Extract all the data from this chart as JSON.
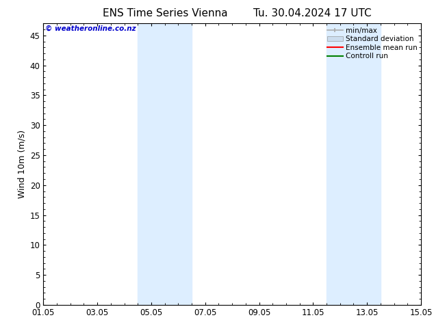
{
  "title_left": "ENS Time Series Vienna",
  "title_right": "Tu. 30.04.2024 17 UTC",
  "ylabel": "Wind 10m (m/s)",
  "ylim": [
    0,
    47
  ],
  "yticks": [
    0,
    5,
    10,
    15,
    20,
    25,
    30,
    35,
    40,
    45
  ],
  "xlim_start": 0,
  "xlim_end": 14,
  "xtick_labels": [
    "01.05",
    "03.05",
    "05.05",
    "07.05",
    "09.05",
    "11.05",
    "13.05",
    "15.05"
  ],
  "xtick_positions": [
    0,
    2,
    4,
    6,
    8,
    10,
    12,
    14
  ],
  "shaded_bands": [
    {
      "x_start": 3.5,
      "x_end": 5.5,
      "color": "#ddeeff"
    },
    {
      "x_start": 10.5,
      "x_end": 12.5,
      "color": "#ddeeff"
    }
  ],
  "watermark_text": "© weatheronline.co.nz",
  "watermark_color": "#0000cc",
  "legend_items": [
    {
      "label": "min/max",
      "color": "#aaaaaa",
      "linestyle": "-",
      "linewidth": 1.2
    },
    {
      "label": "Standard deviation",
      "color": "#ccddee",
      "linestyle": "-",
      "linewidth": 6
    },
    {
      "label": "Ensemble mean run",
      "color": "#ff0000",
      "linestyle": "-",
      "linewidth": 1.5
    },
    {
      "label": "Controll run",
      "color": "#008000",
      "linestyle": "-",
      "linewidth": 1.5
    }
  ],
  "bg_color": "#ffffff",
  "plot_bg_color": "#ffffff",
  "title_fontsize": 11,
  "ylabel_fontsize": 9,
  "tick_fontsize": 8.5
}
